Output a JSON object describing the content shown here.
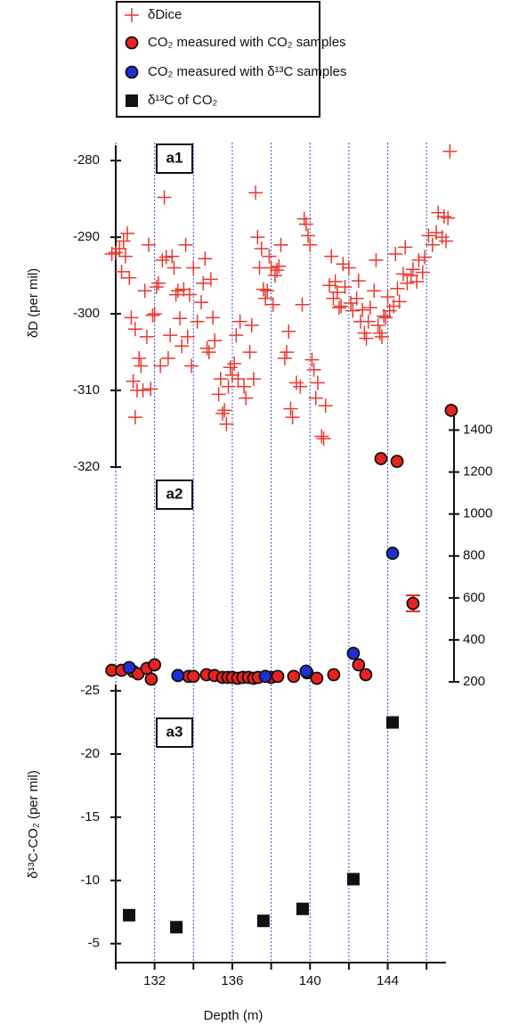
{
  "chart_data": [
    {
      "type": "scatter",
      "label": "a1",
      "ylabel": "δD (per mil)",
      "ylim": [
        -320,
        -278
      ],
      "yticks": [
        -320,
        -310,
        -300,
        -290,
        -280
      ],
      "series": [
        {
          "name": "δDice",
          "color": "#e8392f",
          "marker": "plus",
          "x": [
            129.8,
            130.0,
            130.2,
            130.3,
            130.4,
            130.5,
            130.6,
            130.7,
            130.8,
            130.9,
            131.0,
            131.0,
            131.1,
            131.2,
            131.3,
            131.4,
            131.5,
            131.6,
            131.7,
            131.8,
            131.9,
            132.0,
            132.1,
            132.2,
            132.3,
            132.4,
            132.5,
            132.6,
            132.7,
            132.8,
            132.9,
            133.0,
            133.1,
            133.2,
            133.3,
            133.4,
            133.5,
            133.6,
            133.7,
            133.8,
            133.9,
            134.0,
            134.2,
            134.4,
            134.5,
            134.6,
            134.7,
            134.8,
            134.9,
            135.0,
            135.1,
            135.3,
            135.4,
            135.5,
            135.6,
            135.7,
            135.8,
            135.9,
            136.0,
            136.1,
            136.2,
            136.3,
            136.4,
            136.6,
            136.7,
            136.9,
            137.0,
            137.1,
            137.2,
            137.3,
            137.4,
            137.5,
            137.6,
            137.7,
            137.8,
            137.9,
            138.0,
            138.1,
            138.2,
            138.3,
            138.4,
            138.5,
            138.7,
            138.8,
            138.9,
            139.0,
            139.1,
            139.3,
            139.5,
            139.6,
            139.7,
            139.8,
            139.9,
            140.0,
            140.1,
            140.2,
            140.3,
            140.4,
            140.6,
            140.7,
            140.8,
            141.0,
            141.1,
            141.2,
            141.3,
            141.4,
            141.5,
            141.6,
            141.7,
            141.8,
            142.0,
            142.1,
            142.2,
            142.4,
            142.5,
            142.6,
            142.7,
            142.8,
            142.9,
            143.0,
            143.1,
            143.3,
            143.4,
            143.5,
            143.6,
            143.7,
            143.8,
            143.9,
            144.0,
            144.1,
            144.3,
            144.4,
            144.5,
            144.6,
            144.8,
            144.9,
            145.0,
            145.2,
            145.3,
            145.5,
            145.6,
            145.8,
            145.9,
            146.1,
            146.3,
            146.5,
            146.6,
            146.8,
            146.9,
            147.0,
            147.1,
            147.2
          ],
          "values": [
            -292.2,
            -292,
            -291.5,
            -294.5,
            -290.5,
            -292.5,
            -289.5,
            -295.3,
            -300.5,
            -308.8,
            -313.5,
            -302,
            -310,
            -305.8,
            -306.8,
            -310,
            -297,
            -303,
            -291,
            -309.8,
            -300.2,
            -300,
            -296.5,
            -296,
            -306.8,
            -293,
            -284.8,
            -292.6,
            -305.8,
            -302.8,
            -292.5,
            -294,
            -297.5,
            -297,
            -300.6,
            -304.2,
            -296.8,
            -291,
            -303,
            -297.5,
            -306.8,
            -294,
            -301,
            -298.5,
            -296,
            -292.8,
            -304.5,
            -305,
            -295.5,
            -300.5,
            -303.5,
            -310.5,
            -308.5,
            -313,
            -312.6,
            -314.4,
            -309.5,
            -307,
            -308,
            -306.5,
            -302.8,
            -308.5,
            -301,
            -309.5,
            -311,
            -305,
            -301.5,
            -308.5,
            -284.2,
            -290,
            -294,
            -291.5,
            -296.8,
            -298,
            -297,
            -292.5,
            -294,
            -298.8,
            -295,
            -294.3,
            -293.8,
            -291,
            -305.8,
            -305,
            -302.3,
            -312.4,
            -313.5,
            -309,
            -309.5,
            -298.8,
            -287.6,
            -288.3,
            -289.8,
            -291,
            -306,
            -307.3,
            -311,
            -309,
            -316,
            -316.3,
            -312,
            -296.3,
            -292.5,
            -298,
            -295.8,
            -297.2,
            -299.2,
            -299,
            -293.5,
            -296.5,
            -294,
            -298.6,
            -299.6,
            -298,
            -295.7,
            -301,
            -299.5,
            -302.5,
            -303.2,
            -301,
            -299.2,
            -297,
            -293,
            -301.5,
            -302.5,
            -303,
            -300.3,
            -300.5,
            -297.8,
            -299.6,
            -299,
            -292.2,
            -296.7,
            -298.4,
            -294.8,
            -291.3,
            -296,
            -295,
            -294.2,
            -295.8,
            -293,
            -294.6,
            -292.6,
            -289.8,
            -291,
            -289.4,
            -286.8,
            -290,
            -287.3,
            -290.5,
            -287.5,
            -278.8
          ]
        }
      ]
    },
    {
      "type": "scatter",
      "label": "a2",
      "axis_side": "right",
      "ylim": [
        200,
        1500
      ],
      "yticks": [
        200,
        400,
        600,
        800,
        1000,
        1200,
        1400
      ],
      "series": [
        {
          "name": "CO₂ measured with CO₂ samples",
          "color": "#e8231f",
          "marker": "circle",
          "x": [
            129.8,
            130.3,
            130.9,
            131.15,
            131.6,
            131.83,
            132.0,
            133.2,
            133.75,
            134.0,
            134.67,
            135.08,
            135.5,
            135.77,
            136.0,
            136.28,
            136.55,
            136.83,
            137.1,
            137.33,
            138.0,
            138.34,
            139.16,
            139.85,
            140.35,
            141.22,
            142.5,
            142.87,
            143.65,
            144.48,
            145.3,
            147.27
          ],
          "values": [
            255,
            255,
            250,
            238,
            264,
            213,
            281,
            230,
            226,
            226,
            234,
            230,
            221,
            221,
            221,
            217,
            221,
            221,
            217,
            221,
            221,
            226,
            226,
            243,
            217,
            234,
            281,
            234,
            1264,
            1251,
            574,
            1494
          ],
          "errors": [
            null,
            null,
            null,
            null,
            null,
            null,
            null,
            null,
            null,
            null,
            null,
            null,
            null,
            null,
            null,
            null,
            null,
            null,
            null,
            null,
            null,
            null,
            null,
            null,
            null,
            null,
            null,
            null,
            null,
            null,
            38,
            null
          ]
        },
        {
          "name": "CO₂ measured with δ¹³C samples",
          "color": "#1f2fd6",
          "marker": "circle",
          "x": [
            130.69,
            133.2,
            137.7,
            139.8,
            142.23,
            144.25
          ],
          "values": [
            268,
            230,
            226,
            251,
            336,
            813
          ]
        }
      ]
    },
    {
      "type": "scatter",
      "label": "a3",
      "ylabel": "δ¹³C-CO₂ (per mil)",
      "ylim": [
        -25.5,
        -3.5
      ],
      "y_inverted": true,
      "yticks": [
        -25,
        -20,
        -15,
        -10,
        -5
      ],
      "xlabel": "Depth (m)",
      "xlim": [
        130,
        147
      ],
      "xticks": [
        132,
        136,
        140,
        144
      ],
      "x_minor_ticks": [
        130,
        134,
        138,
        142,
        146
      ],
      "grid": true,
      "grid_color": "#3f4fd8",
      "series": [
        {
          "name": "δ¹³C of CO₂",
          "color": "#111111",
          "marker": "square",
          "x": [
            130.69,
            133.12,
            137.6,
            139.62,
            142.23,
            144.25
          ],
          "values": [
            -7.25,
            -6.3,
            -6.8,
            -7.75,
            -10.1,
            -22.5
          ]
        }
      ]
    }
  ]
}
